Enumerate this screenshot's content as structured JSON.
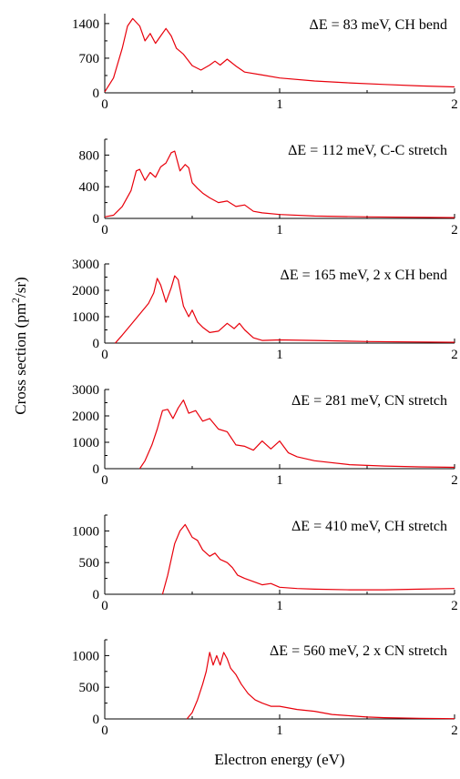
{
  "figure": {
    "ylabel_prefix": "Cross section (pm",
    "ylabel_sup": "2",
    "ylabel_suffix": "/sr)",
    "xlabel": "Electron energy (eV)"
  },
  "chart_data": [
    {
      "type": "line",
      "title": "ΔE = 83 meV, CH bend",
      "xlim": [
        0,
        2
      ],
      "ylim": [
        0,
        1600
      ],
      "xticks": [
        0,
        1,
        2
      ],
      "yticks": [
        0,
        700,
        1400
      ],
      "color": "#e8000b",
      "x": [
        0.0,
        0.05,
        0.1,
        0.13,
        0.16,
        0.2,
        0.23,
        0.26,
        0.29,
        0.32,
        0.35,
        0.38,
        0.41,
        0.45,
        0.5,
        0.55,
        0.6,
        0.63,
        0.66,
        0.7,
        0.75,
        0.8,
        0.9,
        1.0,
        1.2,
        1.4,
        1.6,
        1.8,
        2.0
      ],
      "y": [
        20,
        300,
        900,
        1350,
        1500,
        1350,
        1050,
        1200,
        1000,
        1150,
        1300,
        1150,
        900,
        780,
        550,
        460,
        560,
        640,
        560,
        680,
        540,
        420,
        360,
        300,
        240,
        200,
        170,
        140,
        120
      ]
    },
    {
      "type": "line",
      "title": "ΔE = 112 meV, C-C stretch",
      "xlim": [
        0,
        2
      ],
      "ylim": [
        0,
        1000
      ],
      "xticks": [
        0,
        1,
        2
      ],
      "yticks": [
        0,
        400,
        800
      ],
      "color": "#e8000b",
      "x": [
        0.0,
        0.05,
        0.1,
        0.15,
        0.18,
        0.2,
        0.23,
        0.26,
        0.29,
        0.32,
        0.35,
        0.38,
        0.4,
        0.43,
        0.46,
        0.48,
        0.5,
        0.53,
        0.56,
        0.6,
        0.65,
        0.7,
        0.75,
        0.8,
        0.85,
        0.9,
        1.0,
        1.2,
        1.5,
        2.0
      ],
      "y": [
        20,
        40,
        150,
        350,
        600,
        620,
        480,
        580,
        520,
        650,
        700,
        830,
        850,
        600,
        680,
        640,
        450,
        380,
        320,
        260,
        200,
        220,
        150,
        170,
        90,
        70,
        50,
        30,
        20,
        10
      ]
    },
    {
      "type": "line",
      "title": "ΔE = 165 meV, 2 x CH bend",
      "xlim": [
        0,
        2
      ],
      "ylim": [
        0,
        3000
      ],
      "xticks": [
        0,
        1,
        2
      ],
      "yticks": [
        0,
        1000,
        2000,
        3000
      ],
      "color": "#e8000b",
      "x": [
        0.06,
        0.1,
        0.15,
        0.2,
        0.25,
        0.28,
        0.3,
        0.32,
        0.35,
        0.38,
        0.4,
        0.42,
        0.45,
        0.48,
        0.5,
        0.53,
        0.56,
        0.6,
        0.65,
        0.7,
        0.74,
        0.77,
        0.8,
        0.85,
        0.9,
        1.0,
        1.2,
        1.5,
        2.0
      ],
      "y": [
        0,
        300,
        700,
        1100,
        1500,
        1900,
        2450,
        2200,
        1550,
        2100,
        2550,
        2400,
        1400,
        1000,
        1250,
        800,
        600,
        400,
        450,
        750,
        550,
        750,
        500,
        200,
        100,
        120,
        100,
        60,
        30
      ]
    },
    {
      "type": "line",
      "title": "ΔE = 281 meV, CN stretch",
      "xlim": [
        0,
        2
      ],
      "ylim": [
        0,
        3000
      ],
      "xticks": [
        0,
        1,
        2
      ],
      "yticks": [
        0,
        1000,
        2000,
        3000
      ],
      "color": "#e8000b",
      "x": [
        0.2,
        0.23,
        0.27,
        0.3,
        0.33,
        0.36,
        0.39,
        0.42,
        0.45,
        0.48,
        0.52,
        0.56,
        0.6,
        0.65,
        0.7,
        0.75,
        0.8,
        0.85,
        0.9,
        0.95,
        1.0,
        1.05,
        1.1,
        1.2,
        1.4,
        1.6,
        1.8,
        2.0
      ],
      "y": [
        0,
        300,
        900,
        1500,
        2200,
        2250,
        1900,
        2300,
        2600,
        2100,
        2200,
        1800,
        1900,
        1500,
        1400,
        900,
        850,
        700,
        1050,
        750,
        1050,
        600,
        450,
        300,
        150,
        100,
        70,
        50
      ]
    },
    {
      "type": "line",
      "title": "ΔE = 410 meV, CH stretch",
      "xlim": [
        0,
        2
      ],
      "ylim": [
        0,
        1250
      ],
      "xticks": [
        0,
        1,
        2
      ],
      "yticks": [
        0,
        500,
        1000
      ],
      "color": "#e8000b",
      "x": [
        0.33,
        0.36,
        0.4,
        0.43,
        0.46,
        0.48,
        0.5,
        0.53,
        0.56,
        0.6,
        0.63,
        0.66,
        0.7,
        0.73,
        0.76,
        0.8,
        0.85,
        0.9,
        0.95,
        1.0,
        1.1,
        1.2,
        1.4,
        1.6,
        1.8,
        2.0
      ],
      "y": [
        0,
        300,
        800,
        1000,
        1100,
        1000,
        900,
        850,
        700,
        600,
        650,
        550,
        500,
        420,
        300,
        250,
        200,
        150,
        170,
        110,
        90,
        80,
        70,
        70,
        80,
        90
      ]
    },
    {
      "type": "line",
      "title": "ΔE = 560 meV, 2 x CN stretch",
      "xlim": [
        0,
        2
      ],
      "ylim": [
        0,
        1250
      ],
      "xticks": [
        0,
        1,
        2
      ],
      "yticks": [
        0,
        500,
        1000
      ],
      "color": "#e8000b",
      "x": [
        0.47,
        0.5,
        0.53,
        0.56,
        0.58,
        0.6,
        0.62,
        0.64,
        0.66,
        0.68,
        0.7,
        0.72,
        0.75,
        0.78,
        0.82,
        0.86,
        0.9,
        0.95,
        1.0,
        1.1,
        1.2,
        1.3,
        1.4,
        1.5,
        1.6,
        1.8,
        2.0
      ],
      "y": [
        0,
        100,
        300,
        550,
        750,
        1050,
        850,
        1000,
        850,
        1050,
        950,
        800,
        700,
        550,
        400,
        300,
        250,
        200,
        200,
        150,
        120,
        70,
        50,
        30,
        20,
        10,
        5
      ]
    }
  ]
}
